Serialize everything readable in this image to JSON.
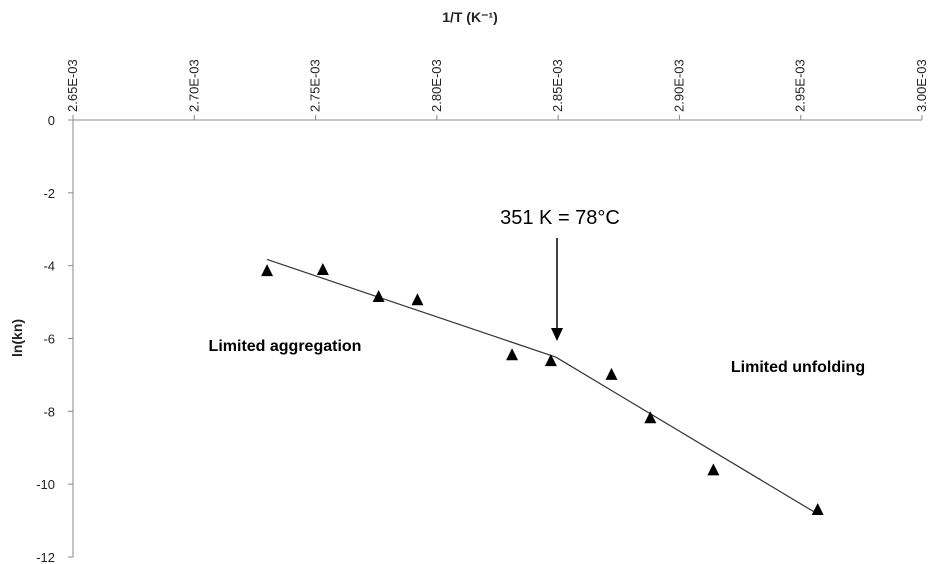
{
  "chart_data": {
    "type": "scatter",
    "x_label": "1/T (K⁻¹)",
    "y_label": "ln(kn)",
    "xlim": [
      0.00265,
      0.003
    ],
    "ylim": [
      -12,
      0
    ],
    "xticks": [
      {
        "value": 0.00265,
        "label": "2.65E-03"
      },
      {
        "value": 0.0027,
        "label": "2.70E-03"
      },
      {
        "value": 0.00275,
        "label": "2.75E-03"
      },
      {
        "value": 0.0028,
        "label": "2.80E-03"
      },
      {
        "value": 0.00285,
        "label": "2.85E-03"
      },
      {
        "value": 0.0029,
        "label": "2.90E-03"
      },
      {
        "value": 0.00295,
        "label": "2.95E-03"
      },
      {
        "value": 0.003,
        "label": "3.00E-03"
      }
    ],
    "yticks": [
      0,
      -2,
      -4,
      -6,
      -8,
      -10,
      -12
    ],
    "color": "#000000",
    "marker": "triangle",
    "points": {
      "x": [
        0.00273,
        0.002753,
        0.002776,
        0.002792,
        0.002831,
        0.002847,
        0.002872,
        0.002888,
        0.002914,
        0.002957
      ],
      "values": [
        -4.15,
        -4.12,
        -4.86,
        -4.95,
        -6.46,
        -6.62,
        -7.0,
        -8.19,
        -9.62,
        -10.71
      ]
    },
    "fit_lines": [
      {
        "x": [
          0.00273,
          0.002849
        ],
        "values": [
          -3.83,
          -6.51
        ]
      },
      {
        "x": [
          0.002849,
          0.002957
        ],
        "values": [
          -6.51,
          -10.82
        ]
      }
    ],
    "annotations": [
      "351 K = 78°C",
      "Limited aggregation",
      "Limited unfolding"
    ]
  }
}
